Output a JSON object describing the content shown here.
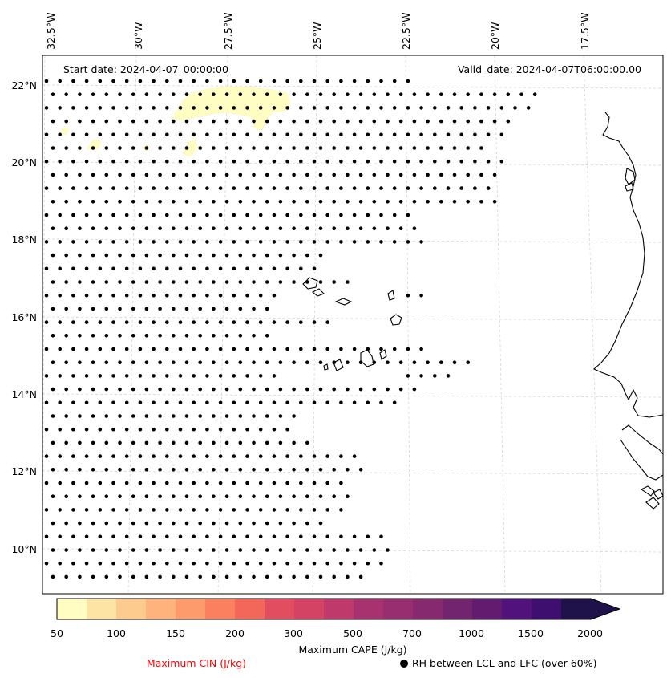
{
  "map": {
    "start_date_label": "Start date: 2024-04-07_00:00:00",
    "valid_date_label": "Valid_date: 2024-04-07T06:00:00.00",
    "lon_ticks": [
      "32.5°W",
      "30°W",
      "27.5°W",
      "25°W",
      "22.5°W",
      "20°W",
      "17.5°W"
    ],
    "lat_ticks": [
      "22°N",
      "20°N",
      "18°N",
      "16°N",
      "14°N",
      "12°N",
      "10°N"
    ],
    "lon_range": [
      -33.0,
      -16.0
    ],
    "lat_range": [
      9.0,
      22.8
    ],
    "gridlines": true,
    "coastline_color": "#000000",
    "marker_color": "#000000"
  },
  "colorbar": {
    "label": "Maximum CAPE (J/kg)",
    "tick_labels": [
      "50",
      "100",
      "150",
      "200",
      "300",
      "500",
      "700",
      "1000",
      "1500",
      "2000"
    ],
    "colors": [
      "#fffdc2",
      "#fee4a4",
      "#fecb8f",
      "#feb27c",
      "#fd9b6c",
      "#fa8060",
      "#f3675b",
      "#e34d60",
      "#d54364",
      "#c0396b",
      "#a8326f",
      "#982e70",
      "#86296f",
      "#73246e",
      "#621b6e",
      "#51127b",
      "#3e0f6e",
      "#1f1149"
    ],
    "extend": "max"
  },
  "legend": {
    "cin_label": "Maximum CIN (J/kg)",
    "cin_color": "#ff0000",
    "rh_label": "RH between LCL and LFC (over 60%)",
    "rh_symbol": "●"
  }
}
